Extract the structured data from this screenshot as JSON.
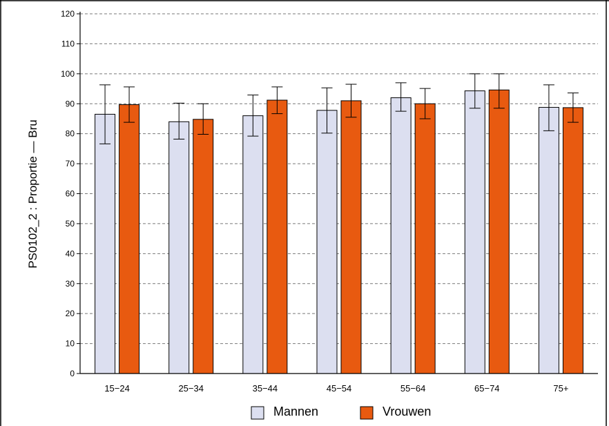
{
  "chart_data": {
    "type": "bar",
    "title": "",
    "xlabel": "",
    "ylabel": "PS0102_2 : Proportie — Bru",
    "ylim": [
      0,
      120
    ],
    "yticks": [
      0,
      10,
      20,
      30,
      40,
      50,
      60,
      70,
      80,
      90,
      100,
      110,
      120
    ],
    "grid": "horizontal-dashed",
    "legend_position": "bottom",
    "categories": [
      "15−24",
      "25−34",
      "35−44",
      "45−54",
      "55−64",
      "65−74",
      "75+"
    ],
    "series": [
      {
        "name": "Mannen",
        "color": "#dcdff0",
        "values": [
          86.5,
          84.0,
          86.0,
          87.8,
          92.0,
          94.3,
          88.8
        ],
        "error_low": [
          76.6,
          78.2,
          79.2,
          80.2,
          87.5,
          88.5,
          81.0
        ],
        "error_high": [
          96.3,
          90.2,
          92.9,
          95.3,
          97.0,
          100.0,
          96.3
        ]
      },
      {
        "name": "Vrouwen",
        "color": "#e85a10",
        "values": [
          89.7,
          84.8,
          91.2,
          91.0,
          90.0,
          94.6,
          88.7
        ],
        "error_low": [
          83.8,
          79.8,
          86.7,
          85.5,
          85.0,
          88.5,
          83.8
        ],
        "error_high": [
          95.6,
          90.0,
          95.6,
          96.5,
          95.1,
          100.0,
          93.6
        ]
      }
    ]
  }
}
